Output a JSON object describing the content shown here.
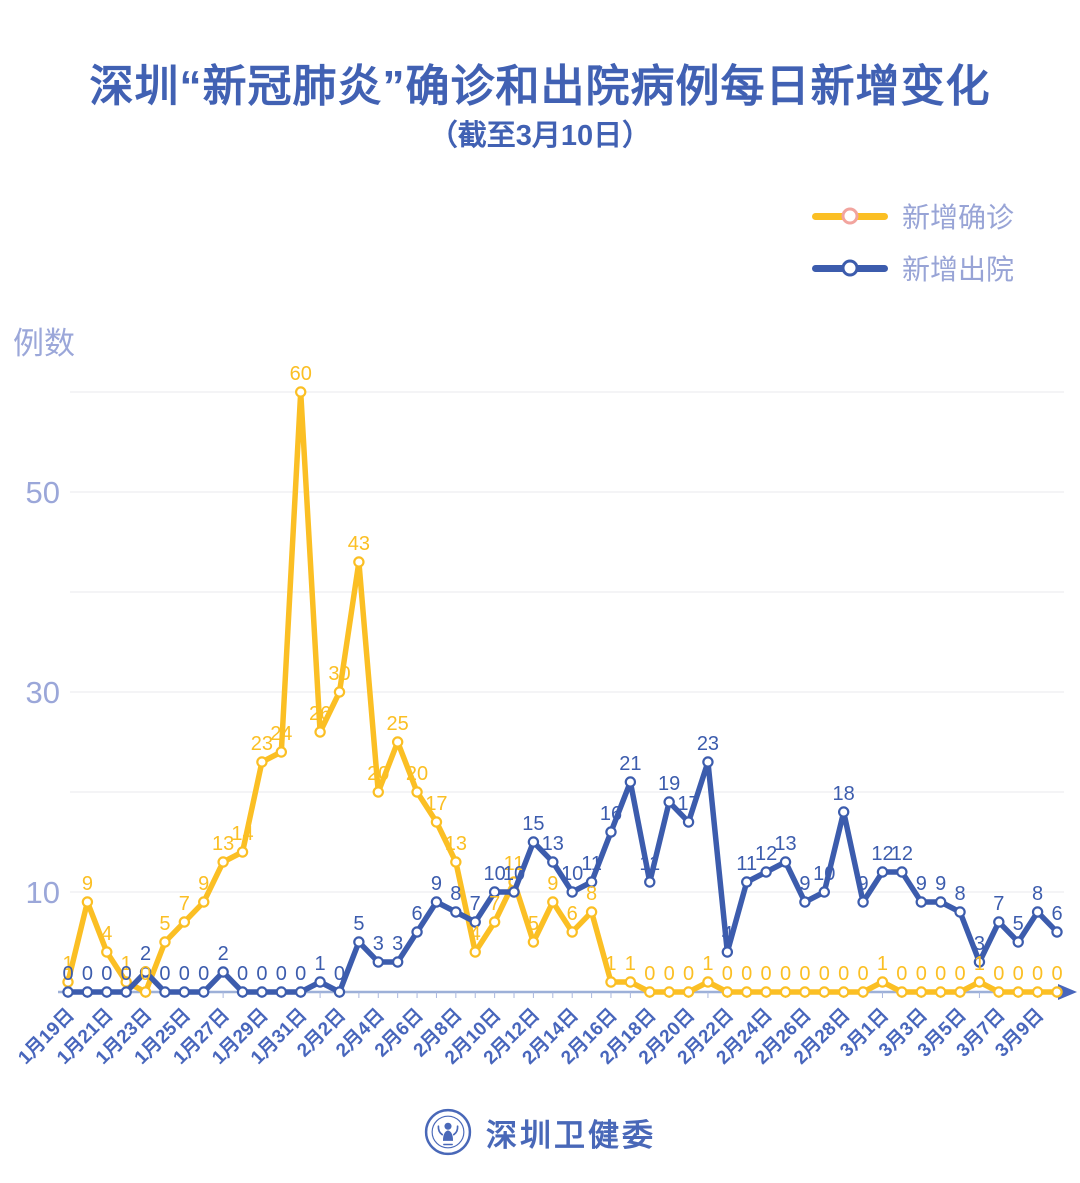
{
  "header": {
    "title": "深圳“新冠肺炎”确诊和出院病例每日新增变化",
    "subtitle": "（截至3月10日）"
  },
  "legend": [
    {
      "label": "新增确诊",
      "color": "#fbbf24",
      "marker_stroke": "#f2a49e"
    },
    {
      "label": "新增出院",
      "color": "#3c5cad",
      "marker_stroke": "#3c5cad"
    }
  ],
  "footer": {
    "brand": "深圳卫健委"
  },
  "chart_data": {
    "type": "line",
    "title": "深圳“新冠肺炎”确诊和出院病例每日新增变化",
    "subtitle": "（截至3月10日）",
    "y_axis_title": "例数",
    "xlabel": "",
    "ylabel": "例数",
    "x": [
      "1月19日",
      "1月20日",
      "1月21日",
      "1月22日",
      "1月23日",
      "1月24日",
      "1月25日",
      "1月26日",
      "1月27日",
      "1月28日",
      "1月29日",
      "1月30日",
      "1月31日",
      "2月1日",
      "2月2日",
      "2月3日",
      "2月4日",
      "2月5日",
      "2月6日",
      "2月7日",
      "2月8日",
      "2月9日",
      "2月10日",
      "2月11日",
      "2月12日",
      "2月13日",
      "2月14日",
      "2月15日",
      "2月16日",
      "2月17日",
      "2月18日",
      "2月19日",
      "2月20日",
      "2月21日",
      "2月22日",
      "2月23日",
      "2月24日",
      "2月25日",
      "2月26日",
      "2月27日",
      "2月28日",
      "2月29日",
      "3月1日",
      "3月2日",
      "3月3日",
      "3月4日",
      "3月5日",
      "3月6日",
      "3月7日",
      "3月8日",
      "3月9日",
      "3月10日"
    ],
    "series": [
      {
        "name": "新增确诊",
        "color": "#fbbf24",
        "values": [
          1,
          9,
          4,
          1,
          0,
          5,
          7,
          9,
          13,
          14,
          23,
          24,
          60,
          26,
          30,
          43,
          20,
          25,
          20,
          17,
          13,
          4,
          7,
          11,
          5,
          9,
          6,
          8,
          1,
          1,
          0,
          0,
          0,
          1,
          0,
          0,
          0,
          0,
          0,
          0,
          0,
          0,
          1,
          0,
          0,
          0,
          0,
          1,
          0,
          0,
          0,
          0
        ]
      },
      {
        "name": "新增出院",
        "color": "#3c5cad",
        "values": [
          0,
          0,
          0,
          0,
          2,
          0,
          0,
          0,
          2,
          0,
          0,
          0,
          0,
          1,
          0,
          5,
          3,
          3,
          6,
          9,
          8,
          7,
          10,
          10,
          15,
          13,
          10,
          11,
          16,
          21,
          11,
          19,
          17,
          23,
          4,
          11,
          12,
          13,
          9,
          10,
          18,
          9,
          12,
          12,
          9,
          9,
          8,
          3,
          7,
          5,
          8,
          6
        ]
      }
    ],
    "ylim": [
      0,
      63
    ],
    "y_gridlines": [
      10,
      20,
      30,
      40,
      50,
      60
    ],
    "y_tick_labels": [
      10,
      30,
      50
    ],
    "x_label_every": 2,
    "grid": true,
    "legend_position": "top-right",
    "point_markers": "hollow-circle",
    "value_labels": "above-points"
  }
}
